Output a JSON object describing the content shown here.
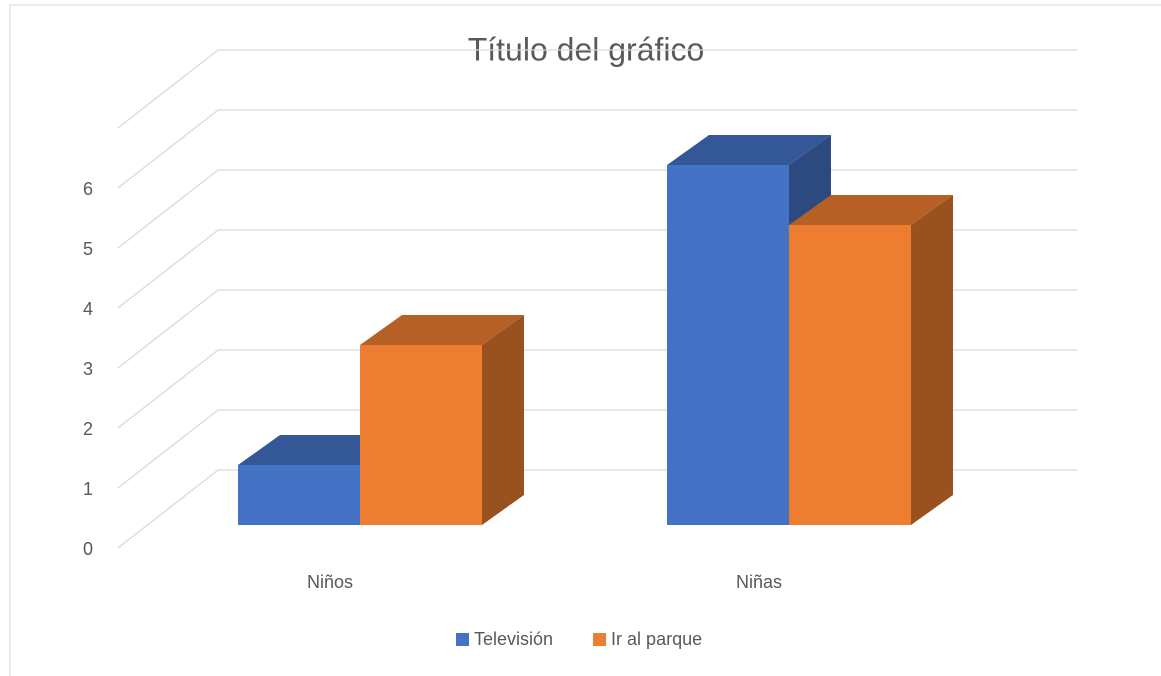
{
  "chart_data": {
    "type": "bar3d",
    "title": "Título del gráfico",
    "categories": [
      "Niños",
      "Niñas"
    ],
    "series": [
      {
        "name": "Televisión",
        "color": "#4472c4",
        "values": [
          1,
          6
        ]
      },
      {
        "name": "Ir al parque",
        "color": "#ed7d31",
        "values": [
          3,
          5
        ]
      }
    ],
    "ylim": [
      0,
      7
    ],
    "yticks": [
      0,
      1,
      2,
      3,
      4,
      5,
      6
    ],
    "grid": true,
    "legend": "bottom"
  }
}
